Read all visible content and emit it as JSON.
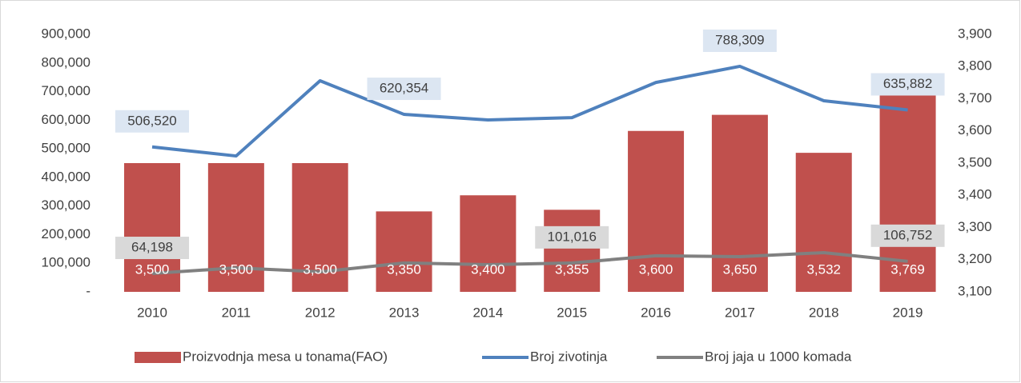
{
  "chart_data": {
    "type": "bar-line",
    "categories": [
      "2010",
      "2011",
      "2012",
      "2013",
      "2014",
      "2015",
      "2016",
      "2017",
      "2018",
      "2019"
    ],
    "series": [
      {
        "name": "Proizvodnja mesa u tonama(FAO)",
        "type": "bar",
        "axis": "y2",
        "color": "#c0504d",
        "values": [
          3500,
          3500,
          3500,
          3350,
          3400,
          3355,
          3600,
          3650,
          3532,
          3769
        ],
        "value_labels": [
          "3,500",
          "3,500",
          "3,500",
          "3,350",
          "3,400",
          "3,355",
          "3,600",
          "3,650",
          "3,532",
          "3,769"
        ]
      },
      {
        "name": "Broj zivotinja",
        "type": "line",
        "color": "#4f81bd",
        "values": [
          506520,
          475000,
          738000,
          620354,
          601000,
          609000,
          732000,
          788309,
          668000,
          635882
        ],
        "value_labels": [
          "506,520",
          null,
          null,
          "620,354",
          null,
          null,
          null,
          "788,309",
          null,
          "635,882"
        ]
      },
      {
        "name": "Broj jaja u 1000 komada",
        "type": "line",
        "color": "#808080",
        "values": [
          64198,
          84000,
          70000,
          101000,
          95000,
          101016,
          126000,
          123000,
          137000,
          106752
        ],
        "value_labels": [
          "64,198",
          null,
          null,
          null,
          null,
          "101,016",
          null,
          null,
          null,
          "106,752"
        ]
      }
    ],
    "ylim": [
      0,
      900000
    ],
    "yticks": [
      {
        "value": 0,
        "label": "-"
      },
      {
        "value": 100000,
        "label": "100,000"
      },
      {
        "value": 200000,
        "label": "200,000"
      },
      {
        "value": 300000,
        "label": "300,000"
      },
      {
        "value": 400000,
        "label": "400,000"
      },
      {
        "value": 500000,
        "label": "500,000"
      },
      {
        "value": 600000,
        "label": "600,000"
      },
      {
        "value": 700000,
        "label": "700,000"
      },
      {
        "value": 800000,
        "label": "800,000"
      },
      {
        "value": 900000,
        "label": "900,000"
      }
    ],
    "y2lim": [
      3100,
      3900
    ],
    "y2ticks": [
      {
        "value": 3100,
        "label": "3,100"
      },
      {
        "value": 3200,
        "label": "3,200"
      },
      {
        "value": 3300,
        "label": "3,300"
      },
      {
        "value": 3400,
        "label": "3,400"
      },
      {
        "value": 3500,
        "label": "3,500"
      },
      {
        "value": 3600,
        "label": "3,600"
      },
      {
        "value": 3700,
        "label": "3,700"
      },
      {
        "value": 3800,
        "label": "3,800"
      },
      {
        "value": 3900,
        "label": "3,900"
      }
    ],
    "legend": "bottom"
  }
}
